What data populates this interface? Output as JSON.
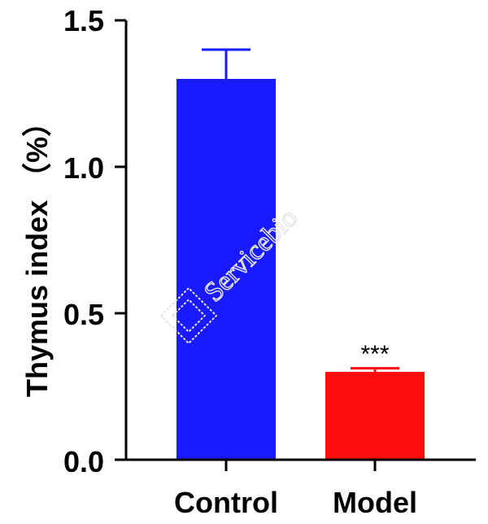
{
  "chart_data": {
    "type": "bar",
    "categories": [
      "Control",
      "Model"
    ],
    "values": [
      1.3,
      0.3
    ],
    "error_bars": [
      0.1,
      0.012
    ],
    "colors": [
      "#1a1aff",
      "#ff0d0d"
    ],
    "ylabel": "Thymus index （%）",
    "xlabel": "",
    "ylim": [
      0,
      1.5
    ],
    "yticks": [
      "0.0",
      "0.5",
      "1.0",
      "1.5"
    ],
    "annotations": [
      {
        "category": "Model",
        "text": "***"
      }
    ],
    "grid": false
  },
  "watermark": {
    "text": "Servicebio"
  }
}
